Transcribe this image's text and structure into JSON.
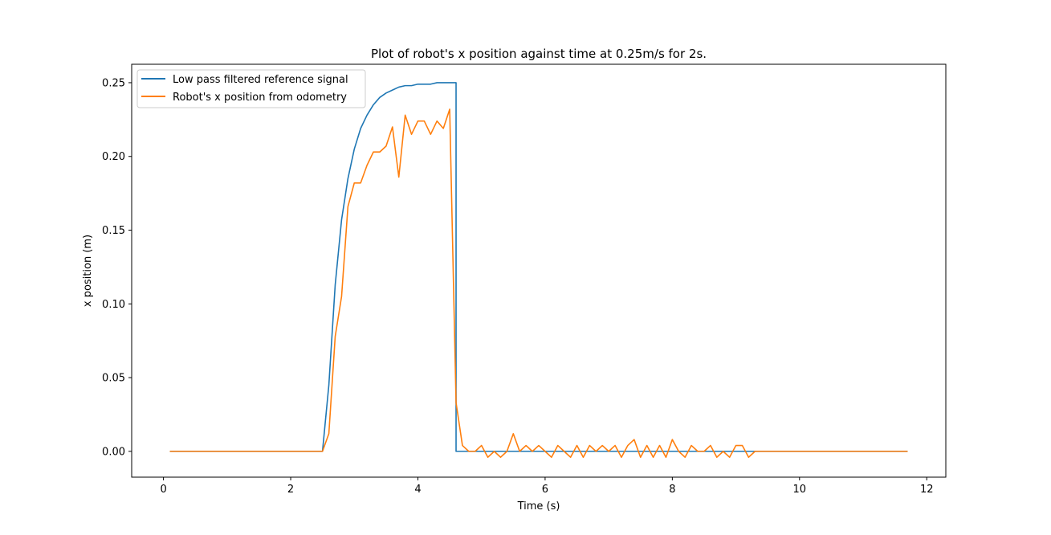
{
  "chart_data": {
    "type": "line",
    "title": "Plot of robot's x position against time at 0.25m/s for 2s.",
    "xlabel": "Time (s)",
    "ylabel": "x position (m)",
    "xlim": [
      -0.5,
      12.3
    ],
    "ylim": [
      -0.0175,
      0.2625
    ],
    "xticks": [
      0,
      2,
      4,
      6,
      8,
      10,
      12
    ],
    "xtick_labels": [
      "0",
      "2",
      "4",
      "6",
      "8",
      "10",
      "12"
    ],
    "yticks": [
      0.0,
      0.05,
      0.1,
      0.15,
      0.2,
      0.25
    ],
    "ytick_labels": [
      "0.00",
      "0.05",
      "0.10",
      "0.15",
      "0.20",
      "0.25"
    ],
    "grid": false,
    "legend_position": "top-left",
    "series": [
      {
        "name": "Low pass filtered reference signal",
        "color": "#1f77b4",
        "x": [
          0.1,
          2.5,
          2.6,
          2.7,
          2.8,
          2.9,
          3.0,
          3.1,
          3.2,
          3.3,
          3.4,
          3.5,
          3.6,
          3.7,
          3.8,
          3.9,
          4.0,
          4.1,
          4.2,
          4.3,
          4.4,
          4.5,
          4.6,
          4.6,
          4.7,
          11.7
        ],
        "y": [
          0.0,
          0.0,
          0.045,
          0.113,
          0.157,
          0.185,
          0.205,
          0.219,
          0.228,
          0.235,
          0.24,
          0.243,
          0.245,
          0.247,
          0.248,
          0.248,
          0.249,
          0.249,
          0.249,
          0.25,
          0.25,
          0.25,
          0.25,
          0.0,
          0.0,
          0.0
        ]
      },
      {
        "name": "Robot's x position from odometry",
        "color": "#ff7f0e",
        "x": [
          0.1,
          2.5,
          2.6,
          2.7,
          2.8,
          2.9,
          3.0,
          3.1,
          3.2,
          3.3,
          3.4,
          3.5,
          3.6,
          3.7,
          3.8,
          3.9,
          4.0,
          4.1,
          4.2,
          4.3,
          4.4,
          4.5,
          4.6,
          4.7,
          4.8,
          4.9,
          5.0,
          5.1,
          5.2,
          5.3,
          5.4,
          5.5,
          5.6,
          5.7,
          5.8,
          5.9,
          6.0,
          6.1,
          6.2,
          6.3,
          6.4,
          6.5,
          6.6,
          6.7,
          6.8,
          6.9,
          7.0,
          7.1,
          7.2,
          7.3,
          7.4,
          7.5,
          7.6,
          7.7,
          7.8,
          7.9,
          8.0,
          8.1,
          8.2,
          8.3,
          8.4,
          8.5,
          8.6,
          8.7,
          8.8,
          8.9,
          9.0,
          9.1,
          9.2,
          9.3,
          11.7
        ],
        "y": [
          0.0,
          0.0,
          0.012,
          0.078,
          0.105,
          0.166,
          0.182,
          0.182,
          0.194,
          0.203,
          0.203,
          0.207,
          0.22,
          0.186,
          0.228,
          0.215,
          0.224,
          0.224,
          0.215,
          0.224,
          0.219,
          0.232,
          0.033,
          0.004,
          0.0,
          0.0,
          0.004,
          -0.004,
          0.0,
          -0.004,
          0.0,
          0.012,
          0.0,
          0.004,
          0.0,
          0.004,
          0.0,
          -0.004,
          0.004,
          0.0,
          -0.004,
          0.004,
          -0.004,
          0.004,
          0.0,
          0.004,
          0.0,
          0.004,
          -0.004,
          0.004,
          0.008,
          -0.004,
          0.004,
          -0.004,
          0.004,
          -0.004,
          0.008,
          0.0,
          -0.004,
          0.004,
          0.0,
          0.0,
          0.004,
          -0.004,
          0.0,
          -0.004,
          0.004,
          0.004,
          -0.004,
          0.0,
          0.0
        ]
      }
    ]
  }
}
